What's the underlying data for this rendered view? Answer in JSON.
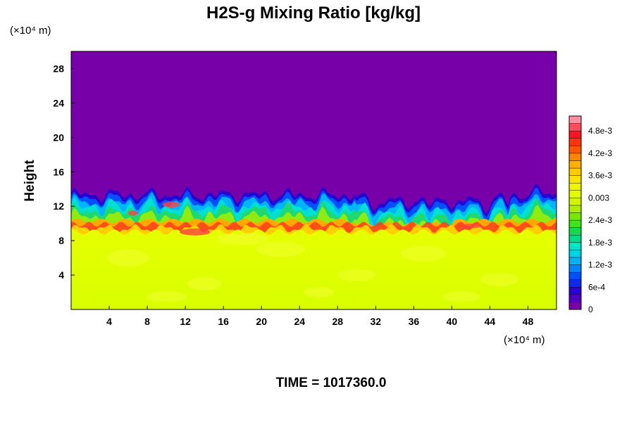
{
  "chart_data": {
    "type": "heatmap",
    "title": "H2S-g Mixing Ratio [kg/kg]",
    "subtitle": "TIME = 1017360.0",
    "ylabel": "Height",
    "xlabel": "",
    "x_unit_label": "(×10⁴ m)",
    "y_unit_label": "(×10⁴ m)",
    "xlim": [
      0,
      51
    ],
    "ylim": [
      0,
      30
    ],
    "x_ticks": [
      4,
      8,
      12,
      16,
      20,
      24,
      28,
      32,
      36,
      40,
      44,
      48
    ],
    "y_ticks": [
      4,
      8,
      12,
      16,
      20,
      24,
      28
    ],
    "colorbar": {
      "range": [
        0,
        0.0052
      ],
      "tick_values": [
        0,
        0.0006,
        0.0012,
        0.0018,
        0.0024,
        0.003,
        0.0036,
        0.0042,
        0.0048
      ],
      "tick_labels": [
        "0",
        "6e-4",
        "1.2e-3",
        "1.8e-3",
        "2.4e-3",
        "0.003",
        "3.6e-3",
        "4.2e-3",
        "4.8e-3"
      ],
      "levels": 26,
      "colors": [
        "#7a00a8",
        "#2c00d8",
        "#0048ff",
        "#00aaff",
        "#00e8d8",
        "#00d860",
        "#58e800",
        "#c8f000",
        "#e8ff00",
        "#ffe000",
        "#ffa800",
        "#ff5000",
        "#ff1020",
        "#ff90a0"
      ]
    },
    "field_description": {
      "lower_layer_value": 0.0036,
      "upper_layer_value": 0,
      "interface_height_range": [
        9.5,
        13.5
      ]
    }
  }
}
